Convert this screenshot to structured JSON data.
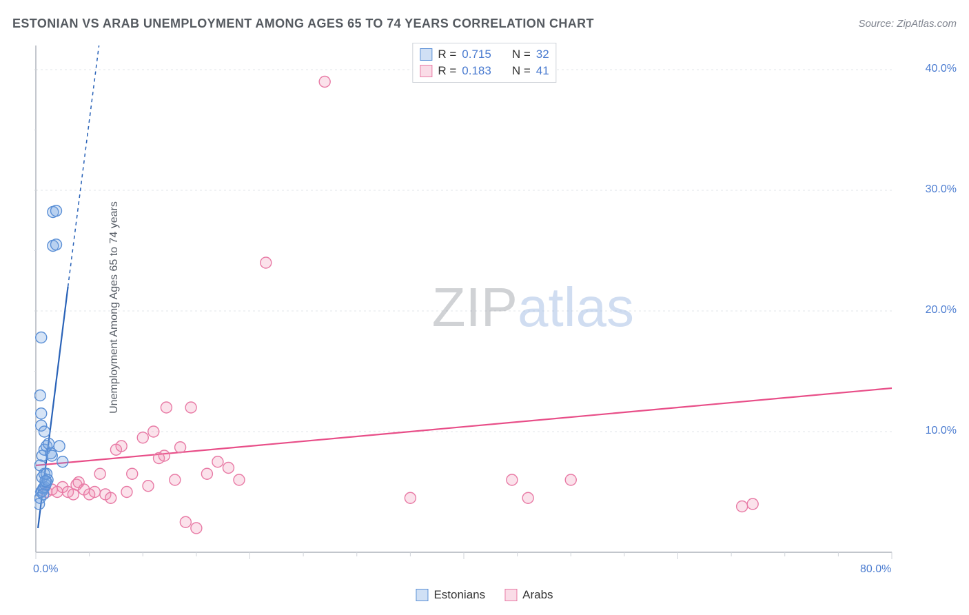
{
  "title": "ESTONIAN VS ARAB UNEMPLOYMENT AMONG AGES 65 TO 74 YEARS CORRELATION CHART",
  "source": "Source: ZipAtlas.com",
  "ylabel": "Unemployment Among Ages 65 to 74 years",
  "watermark_zip": "ZIP",
  "watermark_atlas": "atlas",
  "chart": {
    "type": "scatter",
    "background_color": "#ffffff",
    "grid_color": "#e2e4e8",
    "axis_color": "#9ea4ad",
    "tick_color": "#cfd3d9",
    "tick_label_color": "#4a7bd0",
    "tick_fontsize": 16,
    "title_color": "#555a60",
    "title_fontsize": 18,
    "label_color": "#565c65",
    "label_fontsize": 16,
    "xlim": [
      0,
      80
    ],
    "ylim": [
      0,
      42
    ],
    "xtick_major": [
      0,
      80
    ],
    "xtick_minor_step": 5,
    "ytick_major": [
      10,
      20,
      30,
      40
    ],
    "ytick_minor_step": 5,
    "xtick_labels": {
      "0": "0.0%",
      "80": "80.0%"
    },
    "ytick_labels": {
      "10": "10.0%",
      "20": "20.0%",
      "30": "30.0%",
      "40": "40.0%"
    },
    "marker_radius": 8,
    "marker_stroke_width": 1.4,
    "line_width": 2.2,
    "series": [
      {
        "name": "Estonians",
        "marker_fill": "rgba(120,165,225,0.30)",
        "marker_stroke": "#5a8fd6",
        "line_color": "#2a63b8",
        "line_dash_extrapolate": "5,5",
        "r": 0.715,
        "n": 32,
        "trend_solid": {
          "x1": 0.2,
          "y1": 2.0,
          "x2": 3.0,
          "y2": 22.0
        },
        "trend_dash": {
          "x1": 3.0,
          "y1": 22.0,
          "x2": 5.9,
          "y2": 42.0
        },
        "points": [
          [
            0.3,
            4.0
          ],
          [
            0.4,
            4.5
          ],
          [
            0.5,
            5.0
          ],
          [
            0.6,
            5.1
          ],
          [
            0.7,
            5.3
          ],
          [
            0.8,
            5.4
          ],
          [
            0.9,
            5.6
          ],
          [
            1.0,
            5.8
          ],
          [
            0.6,
            6.2
          ],
          [
            0.8,
            6.5
          ],
          [
            1.1,
            6.0
          ],
          [
            0.4,
            7.2
          ],
          [
            0.6,
            8.0
          ],
          [
            0.8,
            8.5
          ],
          [
            1.0,
            8.8
          ],
          [
            1.2,
            9.0
          ],
          [
            0.5,
            10.5
          ],
          [
            0.8,
            10.0
          ],
          [
            1.4,
            8.2
          ],
          [
            1.5,
            8.0
          ],
          [
            0.5,
            11.5
          ],
          [
            0.4,
            13.0
          ],
          [
            0.5,
            17.8
          ],
          [
            1.6,
            25.4
          ],
          [
            1.9,
            25.5
          ],
          [
            1.6,
            28.2
          ],
          [
            1.9,
            28.3
          ],
          [
            2.2,
            8.8
          ],
          [
            2.5,
            7.5
          ],
          [
            1.0,
            6.5
          ],
          [
            0.7,
            4.8
          ],
          [
            0.9,
            5.9
          ]
        ]
      },
      {
        "name": "Arabs",
        "marker_fill": "rgba(240,140,175,0.25)",
        "marker_stroke": "#e87aa5",
        "line_color": "#e84e88",
        "r": 0.183,
        "n": 41,
        "trend_solid": {
          "x1": 0.0,
          "y1": 7.2,
          "x2": 80.0,
          "y2": 13.6
        },
        "points": [
          [
            1.0,
            5.0
          ],
          [
            1.5,
            5.2
          ],
          [
            2.0,
            5.0
          ],
          [
            2.5,
            5.4
          ],
          [
            3.0,
            5.0
          ],
          [
            3.5,
            4.8
          ],
          [
            3.8,
            5.6
          ],
          [
            4.0,
            5.8
          ],
          [
            4.5,
            5.2
          ],
          [
            5.0,
            4.8
          ],
          [
            5.5,
            5.0
          ],
          [
            6.0,
            6.5
          ],
          [
            6.5,
            4.8
          ],
          [
            7.0,
            4.5
          ],
          [
            7.5,
            8.5
          ],
          [
            8.0,
            8.8
          ],
          [
            8.5,
            5.0
          ],
          [
            9.0,
            6.5
          ],
          [
            10.0,
            9.5
          ],
          [
            10.5,
            5.5
          ],
          [
            11.0,
            10.0
          ],
          [
            11.5,
            7.8
          ],
          [
            12.0,
            8.0
          ],
          [
            12.2,
            12.0
          ],
          [
            13.0,
            6.0
          ],
          [
            13.5,
            8.7
          ],
          [
            14.0,
            2.5
          ],
          [
            14.5,
            12.0
          ],
          [
            15.0,
            2.0
          ],
          [
            16.0,
            6.5
          ],
          [
            17.0,
            7.5
          ],
          [
            18.0,
            7.0
          ],
          [
            19.0,
            6.0
          ],
          [
            21.5,
            24.0
          ],
          [
            27.0,
            39.0
          ],
          [
            35.0,
            4.5
          ],
          [
            44.5,
            6.0
          ],
          [
            46.0,
            4.5
          ],
          [
            50.0,
            6.0
          ],
          [
            66.0,
            3.8
          ],
          [
            67.0,
            4.0
          ]
        ]
      }
    ],
    "top_legend": {
      "box_border": "#cfd3d9",
      "rows": [
        {
          "swatch_fill": "rgba(120,165,225,0.35)",
          "swatch_stroke": "#5a8fd6",
          "r_label": "R =",
          "r_val": "0.715",
          "n_label": "N =",
          "n_val": "32"
        },
        {
          "swatch_fill": "rgba(240,140,175,0.30)",
          "swatch_stroke": "#e87aa5",
          "r_label": "R =",
          "r_val": "0.183",
          "n_label": "N =",
          "n_val": "41"
        }
      ]
    },
    "bottom_legend": {
      "items": [
        {
          "swatch_fill": "rgba(120,165,225,0.35)",
          "swatch_stroke": "#5a8fd6",
          "label": "Estonians"
        },
        {
          "swatch_fill": "rgba(240,140,175,0.30)",
          "swatch_stroke": "#e87aa5",
          "label": "Arabs"
        }
      ]
    }
  }
}
